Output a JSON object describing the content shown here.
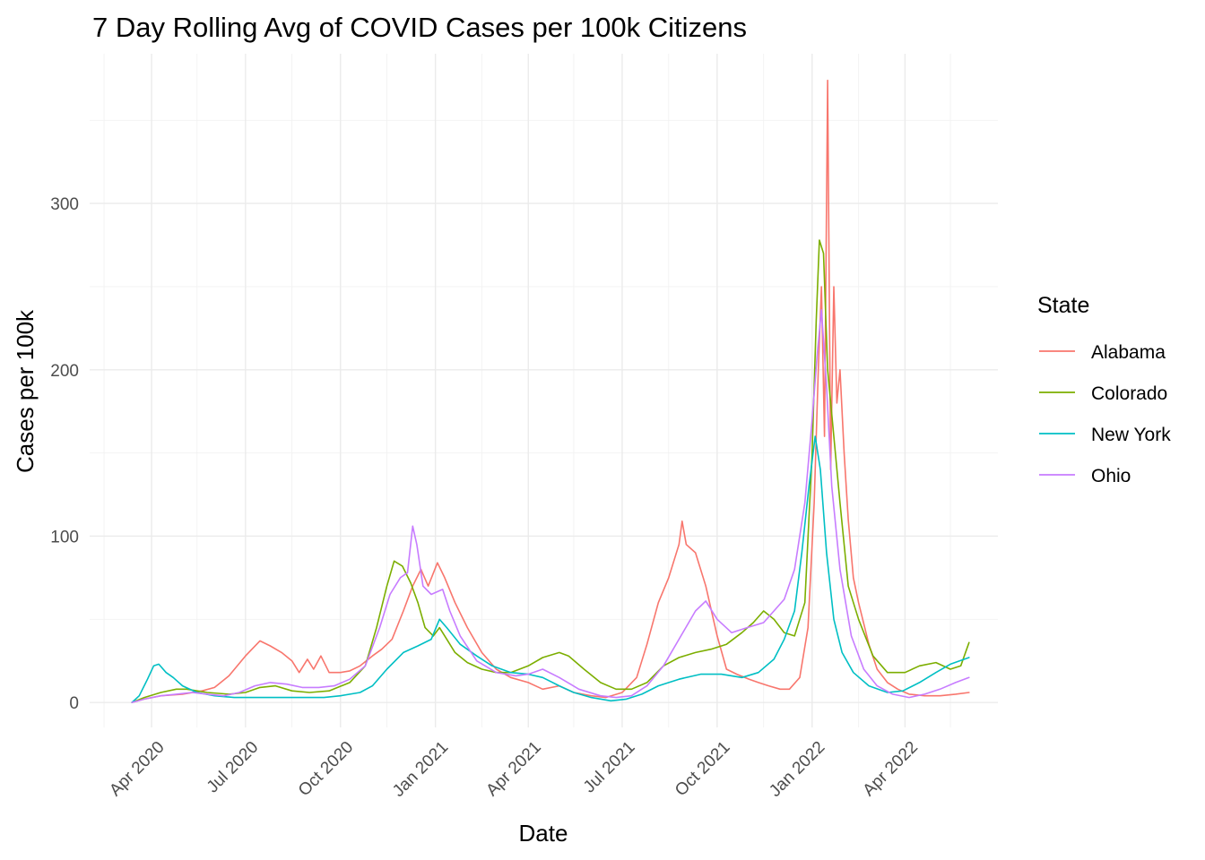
{
  "chart_data": {
    "type": "line",
    "title": "7 Day Rolling Avg of COVID Cases per 100k Citizens",
    "xlabel": "Date",
    "ylabel": "Cases per 100k",
    "x_type": "date",
    "xlim": [
      "2020-02-01",
      "2022-06-30"
    ],
    "ylim": [
      -15,
      390
    ],
    "x_ticks": [
      {
        "date": "2020-04-01",
        "label": "Apr 2020"
      },
      {
        "date": "2020-07-01",
        "label": "Jul 2020"
      },
      {
        "date": "2020-10-01",
        "label": "Oct 2020"
      },
      {
        "date": "2021-01-01",
        "label": "Jan 2021"
      },
      {
        "date": "2021-04-01",
        "label": "Apr 2021"
      },
      {
        "date": "2021-07-01",
        "label": "Jul 2021"
      },
      {
        "date": "2021-10-01",
        "label": "Oct 2021"
      },
      {
        "date": "2022-01-01",
        "label": "Jan 2022"
      },
      {
        "date": "2022-04-01",
        "label": "Apr 2022"
      }
    ],
    "x_minor_ticks": [
      "2020-02-15",
      "2020-05-15",
      "2020-08-15",
      "2020-11-15",
      "2021-02-15",
      "2021-05-15",
      "2021-08-15",
      "2021-11-15",
      "2022-02-15",
      "2022-05-15"
    ],
    "y_ticks": [
      0,
      100,
      200,
      300
    ],
    "y_minor_ticks": [
      50,
      150,
      250,
      350
    ],
    "grid": true,
    "legend": {
      "title": "State",
      "position": "right"
    },
    "series": [
      {
        "name": "Alabama",
        "color": "#F8766D",
        "points": [
          [
            "2020-03-13",
            0
          ],
          [
            "2020-03-25",
            2
          ],
          [
            "2020-04-10",
            4
          ],
          [
            "2020-05-01",
            5
          ],
          [
            "2020-05-20",
            7
          ],
          [
            "2020-06-01",
            9
          ],
          [
            "2020-06-15",
            16
          ],
          [
            "2020-07-01",
            28
          ],
          [
            "2020-07-15",
            37
          ],
          [
            "2020-07-25",
            34
          ],
          [
            "2020-08-05",
            30
          ],
          [
            "2020-08-15",
            25
          ],
          [
            "2020-08-22",
            18
          ],
          [
            "2020-08-30",
            26
          ],
          [
            "2020-09-05",
            20
          ],
          [
            "2020-09-12",
            28
          ],
          [
            "2020-09-20",
            18
          ],
          [
            "2020-10-01",
            18
          ],
          [
            "2020-10-10",
            19
          ],
          [
            "2020-10-20",
            22
          ],
          [
            "2020-11-01",
            28
          ],
          [
            "2020-11-10",
            32
          ],
          [
            "2020-11-20",
            38
          ],
          [
            "2020-12-01",
            55
          ],
          [
            "2020-12-10",
            70
          ],
          [
            "2020-12-18",
            80
          ],
          [
            "2020-12-25",
            70
          ],
          [
            "2021-01-03",
            84
          ],
          [
            "2021-01-10",
            75
          ],
          [
            "2021-01-20",
            60
          ],
          [
            "2021-02-01",
            45
          ],
          [
            "2021-02-15",
            30
          ],
          [
            "2021-03-01",
            20
          ],
          [
            "2021-03-15",
            15
          ],
          [
            "2021-04-01",
            12
          ],
          [
            "2021-04-15",
            8
          ],
          [
            "2021-05-01",
            10
          ],
          [
            "2021-05-15",
            6
          ],
          [
            "2021-06-01",
            4
          ],
          [
            "2021-06-15",
            3
          ],
          [
            "2021-07-01",
            6
          ],
          [
            "2021-07-15",
            15
          ],
          [
            "2021-07-25",
            35
          ],
          [
            "2021-08-05",
            60
          ],
          [
            "2021-08-15",
            75
          ],
          [
            "2021-08-25",
            95
          ],
          [
            "2021-08-28",
            109
          ],
          [
            "2021-09-01",
            95
          ],
          [
            "2021-09-10",
            90
          ],
          [
            "2021-09-20",
            70
          ],
          [
            "2021-10-01",
            40
          ],
          [
            "2021-10-10",
            20
          ],
          [
            "2021-10-20",
            17
          ],
          [
            "2021-11-01",
            14
          ],
          [
            "2021-11-10",
            12
          ],
          [
            "2021-11-20",
            10
          ],
          [
            "2021-12-01",
            8
          ],
          [
            "2021-12-10",
            8
          ],
          [
            "2021-12-20",
            15
          ],
          [
            "2021-12-28",
            45
          ],
          [
            "2022-01-03",
            120
          ],
          [
            "2022-01-07",
            200
          ],
          [
            "2022-01-10",
            250
          ],
          [
            "2022-01-13",
            160
          ],
          [
            "2022-01-16",
            374
          ],
          [
            "2022-01-19",
            140
          ],
          [
            "2022-01-22",
            250
          ],
          [
            "2022-01-25",
            180
          ],
          [
            "2022-01-28",
            200
          ],
          [
            "2022-02-01",
            150
          ],
          [
            "2022-02-05",
            110
          ],
          [
            "2022-02-10",
            75
          ],
          [
            "2022-02-15",
            60
          ],
          [
            "2022-02-25",
            35
          ],
          [
            "2022-03-05",
            20
          ],
          [
            "2022-03-15",
            12
          ],
          [
            "2022-03-25",
            8
          ],
          [
            "2022-04-05",
            5
          ],
          [
            "2022-04-20",
            4
          ],
          [
            "2022-05-05",
            4
          ],
          [
            "2022-05-20",
            5
          ],
          [
            "2022-06-02",
            6
          ]
        ]
      },
      {
        "name": "Colorado",
        "color": "#7CAE00",
        "points": [
          [
            "2020-03-13",
            0
          ],
          [
            "2020-03-25",
            3
          ],
          [
            "2020-04-10",
            6
          ],
          [
            "2020-04-25",
            8
          ],
          [
            "2020-05-05",
            8
          ],
          [
            "2020-05-25",
            6
          ],
          [
            "2020-06-15",
            5
          ],
          [
            "2020-07-01",
            6
          ],
          [
            "2020-07-15",
            9
          ],
          [
            "2020-07-30",
            10
          ],
          [
            "2020-08-15",
            7
          ],
          [
            "2020-09-01",
            6
          ],
          [
            "2020-09-20",
            7
          ],
          [
            "2020-10-10",
            12
          ],
          [
            "2020-10-25",
            22
          ],
          [
            "2020-11-05",
            45
          ],
          [
            "2020-11-15",
            70
          ],
          [
            "2020-11-22",
            85
          ],
          [
            "2020-11-30",
            82
          ],
          [
            "2020-12-08",
            72
          ],
          [
            "2020-12-15",
            60
          ],
          [
            "2020-12-22",
            45
          ],
          [
            "2020-12-30",
            40
          ],
          [
            "2021-01-05",
            45
          ],
          [
            "2021-01-12",
            38
          ],
          [
            "2021-01-20",
            30
          ],
          [
            "2021-02-01",
            24
          ],
          [
            "2021-02-15",
            20
          ],
          [
            "2021-03-01",
            18
          ],
          [
            "2021-03-15",
            18
          ],
          [
            "2021-04-01",
            22
          ],
          [
            "2021-04-15",
            27
          ],
          [
            "2021-05-01",
            30
          ],
          [
            "2021-05-10",
            28
          ],
          [
            "2021-05-25",
            20
          ],
          [
            "2021-06-10",
            12
          ],
          [
            "2021-06-25",
            8
          ],
          [
            "2021-07-10",
            8
          ],
          [
            "2021-07-25",
            12
          ],
          [
            "2021-08-10",
            22
          ],
          [
            "2021-08-25",
            27
          ],
          [
            "2021-09-10",
            30
          ],
          [
            "2021-09-25",
            32
          ],
          [
            "2021-10-10",
            35
          ],
          [
            "2021-10-25",
            42
          ],
          [
            "2021-11-05",
            48
          ],
          [
            "2021-11-15",
            55
          ],
          [
            "2021-11-25",
            50
          ],
          [
            "2021-12-05",
            42
          ],
          [
            "2021-12-15",
            40
          ],
          [
            "2021-12-25",
            60
          ],
          [
            "2022-01-01",
            150
          ],
          [
            "2022-01-05",
            230
          ],
          [
            "2022-01-08",
            278
          ],
          [
            "2022-01-12",
            270
          ],
          [
            "2022-01-16",
            200
          ],
          [
            "2022-01-22",
            160
          ],
          [
            "2022-01-28",
            120
          ],
          [
            "2022-02-05",
            70
          ],
          [
            "2022-02-15",
            50
          ],
          [
            "2022-03-01",
            28
          ],
          [
            "2022-03-15",
            18
          ],
          [
            "2022-04-01",
            18
          ],
          [
            "2022-04-15",
            22
          ],
          [
            "2022-05-01",
            24
          ],
          [
            "2022-05-15",
            20
          ],
          [
            "2022-05-25",
            22
          ],
          [
            "2022-06-02",
            36
          ]
        ]
      },
      {
        "name": "New York",
        "color": "#00BFC4",
        "points": [
          [
            "2020-03-13",
            0
          ],
          [
            "2020-03-20",
            4
          ],
          [
            "2020-03-28",
            14
          ],
          [
            "2020-04-03",
            22
          ],
          [
            "2020-04-08",
            23
          ],
          [
            "2020-04-15",
            18
          ],
          [
            "2020-04-22",
            15
          ],
          [
            "2020-05-01",
            10
          ],
          [
            "2020-05-15",
            6
          ],
          [
            "2020-06-01",
            4
          ],
          [
            "2020-06-20",
            3
          ],
          [
            "2020-07-15",
            3
          ],
          [
            "2020-08-15",
            3
          ],
          [
            "2020-09-15",
            3
          ],
          [
            "2020-10-01",
            4
          ],
          [
            "2020-10-20",
            6
          ],
          [
            "2020-11-01",
            10
          ],
          [
            "2020-11-15",
            20
          ],
          [
            "2020-12-01",
            30
          ],
          [
            "2020-12-15",
            34
          ],
          [
            "2020-12-28",
            38
          ],
          [
            "2021-01-05",
            50
          ],
          [
            "2021-01-12",
            45
          ],
          [
            "2021-01-25",
            35
          ],
          [
            "2021-02-10",
            28
          ],
          [
            "2021-02-25",
            22
          ],
          [
            "2021-03-15",
            18
          ],
          [
            "2021-04-01",
            17
          ],
          [
            "2021-04-15",
            15
          ],
          [
            "2021-05-01",
            10
          ],
          [
            "2021-05-15",
            6
          ],
          [
            "2021-06-01",
            3
          ],
          [
            "2021-06-20",
            1
          ],
          [
            "2021-07-05",
            2
          ],
          [
            "2021-07-20",
            5
          ],
          [
            "2021-08-05",
            10
          ],
          [
            "2021-08-25",
            14
          ],
          [
            "2021-09-15",
            17
          ],
          [
            "2021-10-05",
            17
          ],
          [
            "2021-10-25",
            15
          ],
          [
            "2021-11-10",
            18
          ],
          [
            "2021-11-25",
            26
          ],
          [
            "2021-12-05",
            38
          ],
          [
            "2021-12-15",
            55
          ],
          [
            "2021-12-22",
            90
          ],
          [
            "2021-12-29",
            130
          ],
          [
            "2022-01-04",
            160
          ],
          [
            "2022-01-09",
            140
          ],
          [
            "2022-01-15",
            90
          ],
          [
            "2022-01-22",
            50
          ],
          [
            "2022-01-30",
            30
          ],
          [
            "2022-02-10",
            18
          ],
          [
            "2022-02-25",
            10
          ],
          [
            "2022-03-15",
            6
          ],
          [
            "2022-03-30",
            7
          ],
          [
            "2022-04-15",
            12
          ],
          [
            "2022-05-01",
            18
          ],
          [
            "2022-05-15",
            23
          ],
          [
            "2022-06-02",
            27
          ]
        ]
      },
      {
        "name": "Ohio",
        "color": "#C77CFF",
        "points": [
          [
            "2020-03-13",
            0
          ],
          [
            "2020-03-25",
            2
          ],
          [
            "2020-04-10",
            4
          ],
          [
            "2020-04-25",
            5
          ],
          [
            "2020-05-10",
            6
          ],
          [
            "2020-05-25",
            5
          ],
          [
            "2020-06-10",
            4
          ],
          [
            "2020-06-25",
            6
          ],
          [
            "2020-07-10",
            10
          ],
          [
            "2020-07-25",
            12
          ],
          [
            "2020-08-10",
            11
          ],
          [
            "2020-08-25",
            9
          ],
          [
            "2020-09-10",
            9
          ],
          [
            "2020-09-25",
            10
          ],
          [
            "2020-10-10",
            14
          ],
          [
            "2020-10-25",
            22
          ],
          [
            "2020-11-08",
            45
          ],
          [
            "2020-11-18",
            65
          ],
          [
            "2020-11-28",
            75
          ],
          [
            "2020-12-05",
            78
          ],
          [
            "2020-12-10",
            106
          ],
          [
            "2020-12-14",
            95
          ],
          [
            "2020-12-20",
            70
          ],
          [
            "2020-12-28",
            65
          ],
          [
            "2021-01-08",
            68
          ],
          [
            "2021-01-15",
            55
          ],
          [
            "2021-01-25",
            40
          ],
          [
            "2021-02-10",
            25
          ],
          [
            "2021-03-01",
            18
          ],
          [
            "2021-03-20",
            16
          ],
          [
            "2021-04-01",
            17
          ],
          [
            "2021-04-15",
            20
          ],
          [
            "2021-05-01",
            15
          ],
          [
            "2021-05-20",
            8
          ],
          [
            "2021-06-10",
            4
          ],
          [
            "2021-06-25",
            3
          ],
          [
            "2021-07-10",
            4
          ],
          [
            "2021-07-25",
            10
          ],
          [
            "2021-08-10",
            22
          ],
          [
            "2021-08-25",
            38
          ],
          [
            "2021-09-10",
            55
          ],
          [
            "2021-09-20",
            61
          ],
          [
            "2021-10-01",
            50
          ],
          [
            "2021-10-15",
            42
          ],
          [
            "2021-10-30",
            45
          ],
          [
            "2021-11-15",
            48
          ],
          [
            "2021-11-25",
            55
          ],
          [
            "2021-12-05",
            62
          ],
          [
            "2021-12-15",
            80
          ],
          [
            "2021-12-25",
            120
          ],
          [
            "2022-01-01",
            170
          ],
          [
            "2022-01-06",
            210
          ],
          [
            "2022-01-10",
            236
          ],
          [
            "2022-01-15",
            190
          ],
          [
            "2022-01-20",
            130
          ],
          [
            "2022-01-28",
            80
          ],
          [
            "2022-02-08",
            40
          ],
          [
            "2022-02-20",
            20
          ],
          [
            "2022-03-05",
            10
          ],
          [
            "2022-03-20",
            5
          ],
          [
            "2022-04-05",
            3
          ],
          [
            "2022-04-20",
            5
          ],
          [
            "2022-05-05",
            8
          ],
          [
            "2022-05-20",
            12
          ],
          [
            "2022-06-02",
            15
          ]
        ]
      }
    ]
  }
}
